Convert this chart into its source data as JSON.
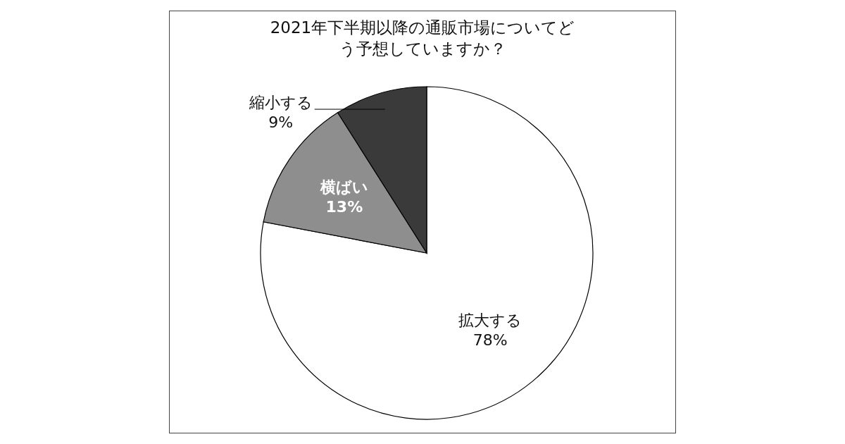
{
  "chart_data": {
    "type": "pie",
    "title": "2021年下半期以降の通販市場についてどう予想していますか？",
    "categories": [
      "拡大する",
      "横ばい",
      "縮小する"
    ],
    "values": [
      78,
      13,
      9
    ],
    "value_labels": [
      "78%",
      "13%",
      "9%"
    ],
    "colors": [
      "#ffffff",
      "#8e8e8e",
      "#3a3a3a"
    ]
  }
}
